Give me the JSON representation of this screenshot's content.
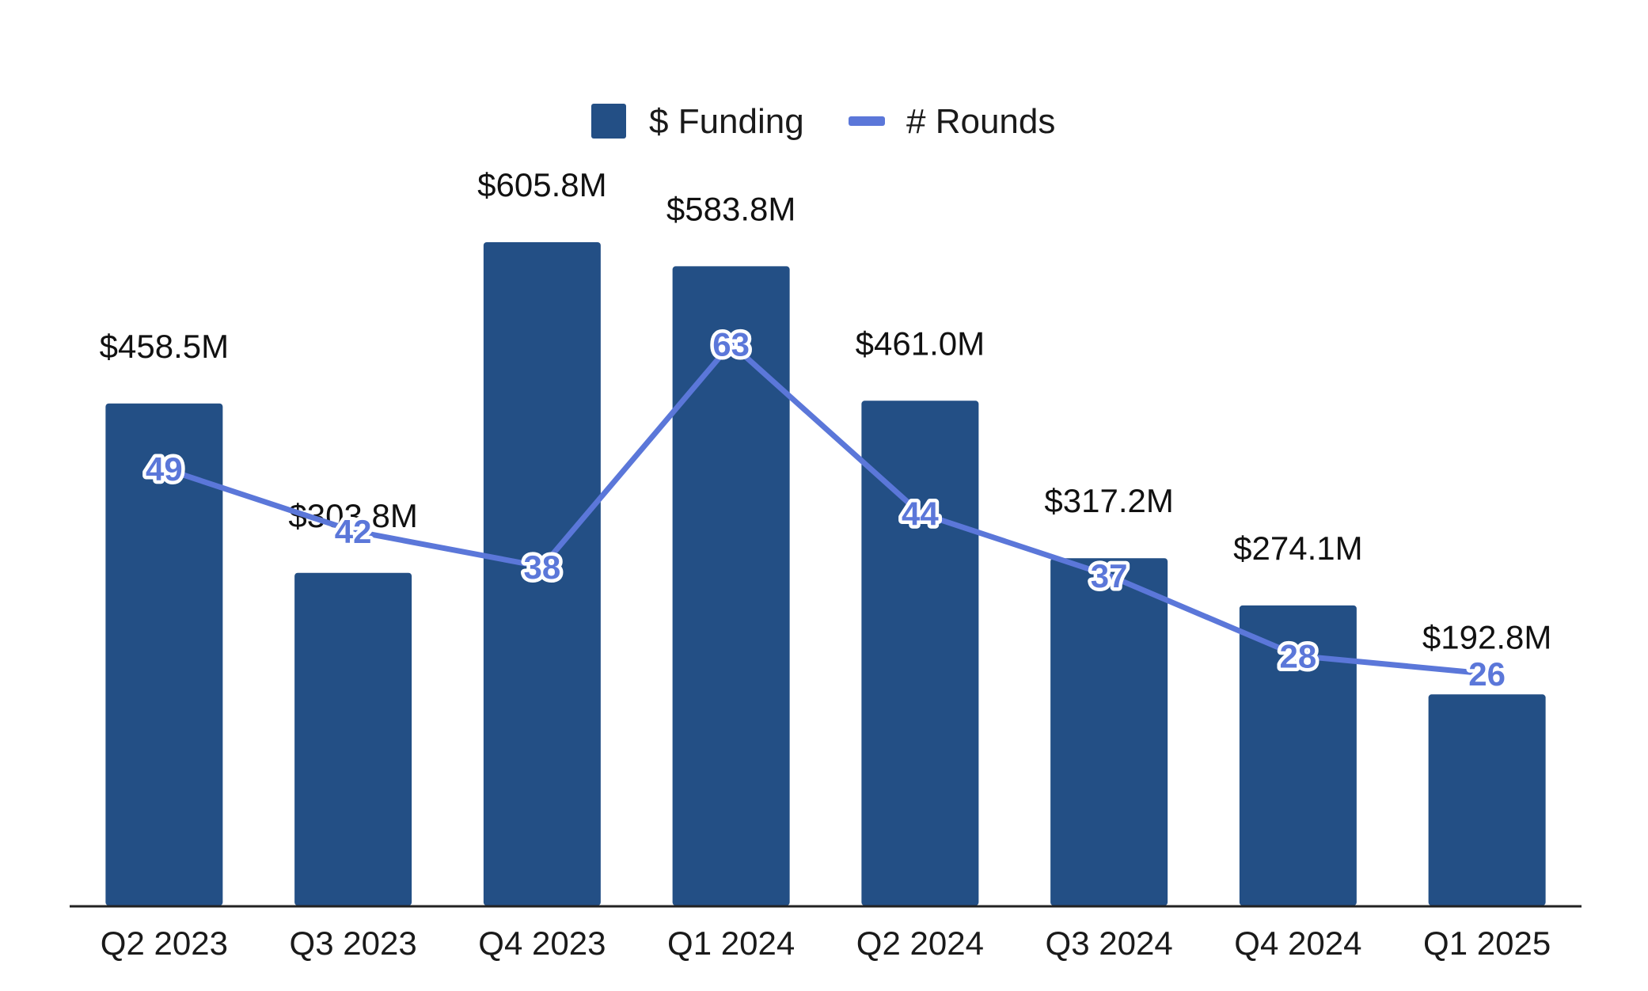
{
  "chart_data": {
    "type": "bar",
    "title": "",
    "xlabel": "",
    "ylabel": "",
    "categories": [
      "Q2 2023",
      "Q3 2023",
      "Q4 2023",
      "Q1 2024",
      "Q2 2024",
      "Q3 2024",
      "Q4 2024",
      "Q1 2025"
    ],
    "legend_position": "top-center",
    "grid": false,
    "series": [
      {
        "name": "$ Funding",
        "kind": "bar",
        "axis": "left",
        "values": [
          458.5,
          303.8,
          605.8,
          583.8,
          461.0,
          317.2,
          274.1,
          192.8
        ],
        "labels": [
          "$458.5M",
          "$303.8M",
          "$605.8M",
          "$583.8M",
          "$461.0M",
          "$317.2M",
          "$274.1M",
          "$192.8M"
        ],
        "color": "#234f85",
        "ylim": [
          0,
          605.8
        ]
      },
      {
        "name": "# Rounds",
        "kind": "line",
        "axis": "right",
        "values": [
          49,
          42,
          38,
          63,
          44,
          37,
          28,
          26
        ],
        "labels": [
          "49",
          "42",
          "38",
          "63",
          "44",
          "37",
          "28",
          "26"
        ],
        "color": "#5b77d9",
        "ylim": [
          0,
          98
        ]
      }
    ]
  }
}
